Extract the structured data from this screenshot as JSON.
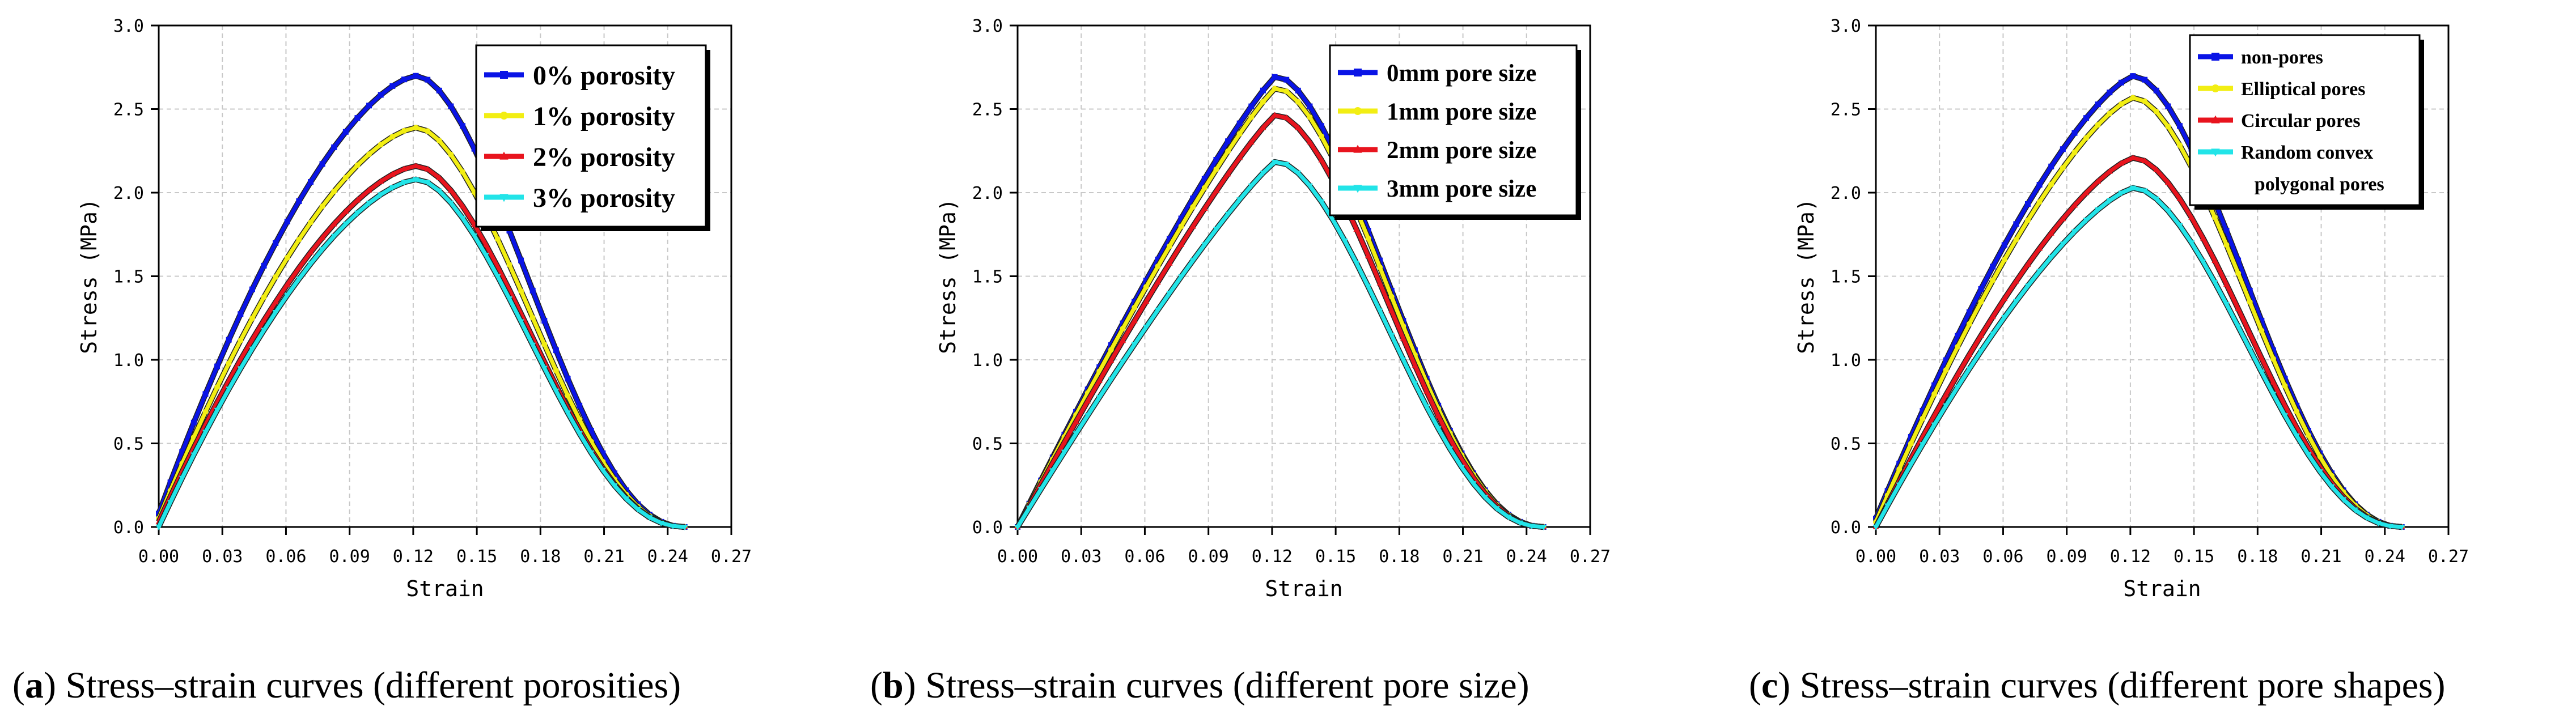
{
  "chart_data": [
    {
      "type": "line",
      "panel_letter": "a",
      "caption": "Stress–strain curves (different porosities)",
      "xlabel": "Strain",
      "ylabel": "Stress (MPa)",
      "xlim": [
        0,
        0.27
      ],
      "ylim": [
        0,
        3.0
      ],
      "xticks": [
        "0.00",
        "0.03",
        "0.06",
        "0.09",
        "0.12",
        "0.15",
        "0.18",
        "0.21",
        "0.24",
        "0.27"
      ],
      "yticks": [
        "0.0",
        "0.5",
        "1.0",
        "1.5",
        "2.0",
        "2.5",
        "3.0"
      ],
      "grid": true,
      "legend_position": "top-right",
      "legend_style": "bold-large",
      "series": [
        {
          "name": "0% porosity",
          "color": "#0a14e6",
          "marker": "square",
          "peak_x": 0.122,
          "peak_y": 2.7,
          "r_left": 1.6,
          "r_right": 1.0,
          "end_x": 0.249,
          "start_y": 0.08
        },
        {
          "name": "1% porosity",
          "color": "#f2ee13",
          "marker": "circle",
          "peak_x": 0.122,
          "peak_y": 2.39,
          "r_left": 1.6,
          "r_right": 1.0,
          "end_x": 0.249,
          "start_y": 0.05
        },
        {
          "name": "2% porosity",
          "color": "#e8141e",
          "marker": "triangle-up",
          "peak_x": 0.122,
          "peak_y": 2.16,
          "r_left": 1.6,
          "r_right": 1.0,
          "end_x": 0.249,
          "start_y": 0.03
        },
        {
          "name": "3% porosity",
          "color": "#22e4e8",
          "marker": "triangle-down",
          "peak_x": 0.122,
          "peak_y": 2.08,
          "r_left": 1.6,
          "r_right": 1.0,
          "end_x": 0.249,
          "start_y": 0.0
        }
      ]
    },
    {
      "type": "line",
      "panel_letter": "b",
      "caption": "Stress–strain curves (different pore size)",
      "xlabel": "Strain",
      "ylabel": "Stress (MPa)",
      "xlim": [
        0,
        0.27
      ],
      "ylim": [
        0,
        3.0
      ],
      "xticks": [
        "0.00",
        "0.03",
        "0.06",
        "0.09",
        "0.12",
        "0.15",
        "0.18",
        "0.21",
        "0.24",
        "0.27"
      ],
      "yticks": [
        "0.0",
        "0.5",
        "1.0",
        "1.5",
        "2.0",
        "2.5",
        "3.0"
      ],
      "grid": true,
      "legend_position": "top-right",
      "legend_style": "bold-medium",
      "series": [
        {
          "name": "0mm pore size",
          "color": "#0a14e6",
          "marker": "square",
          "peak_x": 0.122,
          "peak_y": 2.7,
          "r_left": 1.15,
          "r_right": 1.0,
          "end_x": 0.249,
          "start_y": 0.0
        },
        {
          "name": "1mm pore size",
          "color": "#f2ee13",
          "marker": "circle",
          "peak_x": 0.122,
          "peak_y": 2.63,
          "r_left": 1.15,
          "r_right": 1.0,
          "end_x": 0.249,
          "start_y": 0.0
        },
        {
          "name": "2mm pore size",
          "color": "#e8141e",
          "marker": "triangle-up",
          "peak_x": 0.122,
          "peak_y": 2.47,
          "r_left": 1.15,
          "r_right": 1.0,
          "end_x": 0.249,
          "start_y": 0.0
        },
        {
          "name": "3mm pore size",
          "color": "#22e4e8",
          "marker": "triangle-down",
          "peak_x": 0.122,
          "peak_y": 2.19,
          "r_left": 1.15,
          "r_right": 1.0,
          "end_x": 0.249,
          "start_y": 0.0
        }
      ]
    },
    {
      "type": "line",
      "panel_letter": "c",
      "caption": "Stress–strain curves (different pore shapes)",
      "xlabel": "Strain",
      "ylabel": "Stress (MPa)",
      "xlim": [
        0,
        0.27
      ],
      "ylim": [
        0,
        3.0
      ],
      "xticks": [
        "0.00",
        "0.03",
        "0.06",
        "0.09",
        "0.12",
        "0.15",
        "0.18",
        "0.21",
        "0.24",
        "0.27"
      ],
      "yticks": [
        "0.0",
        "0.5",
        "1.0",
        "1.5",
        "2.0",
        "2.5",
        "3.0"
      ],
      "grid": true,
      "legend_position": "top-right",
      "legend_style": "bold-small",
      "series": [
        {
          "name": "non-pores",
          "color": "#0a14e6",
          "marker": "square",
          "peak_x": 0.122,
          "peak_y": 2.7,
          "r_left": 1.4,
          "r_right": 1.0,
          "end_x": 0.249,
          "start_y": 0.05
        },
        {
          "name": "Elliptical pores",
          "color": "#f2ee13",
          "marker": "circle",
          "peak_x": 0.122,
          "peak_y": 2.57,
          "r_left": 1.4,
          "r_right": 1.0,
          "end_x": 0.249,
          "start_y": 0.03
        },
        {
          "name": "Circular pores",
          "color": "#e8141e",
          "marker": "triangle-up",
          "peak_x": 0.122,
          "peak_y": 2.21,
          "r_left": 1.4,
          "r_right": 1.0,
          "end_x": 0.249,
          "start_y": 0.0
        },
        {
          "name": "Random convex\npolygonal pores",
          "color": "#22e4e8",
          "marker": "triangle-down",
          "peak_x": 0.122,
          "peak_y": 2.03,
          "r_left": 1.4,
          "r_right": 1.0,
          "end_x": 0.249,
          "start_y": 0.0
        }
      ]
    }
  ]
}
